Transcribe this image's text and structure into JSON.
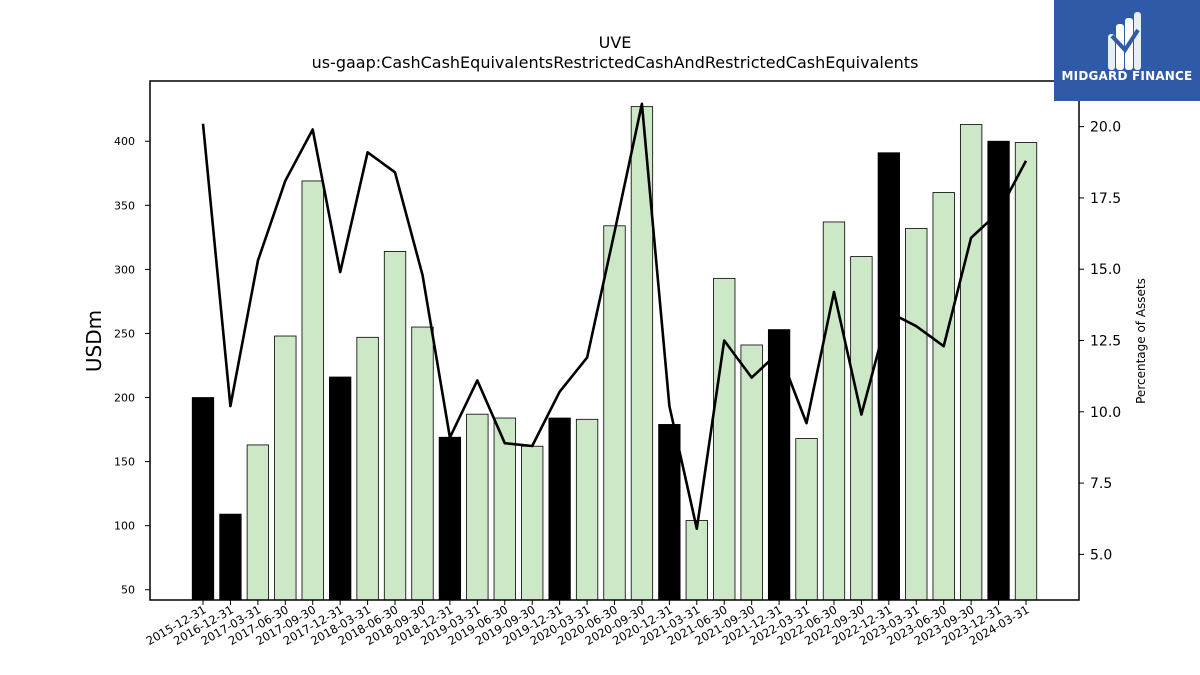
{
  "brand": {
    "name": "MIDGARD FINANCE",
    "color": "#2f5aa8"
  },
  "chart_data": {
    "type": "bar",
    "title": "UVE",
    "subtitle": "us-gaap:CashCashEquivalentsRestrictedCashAndRestrictedCashEquivalents",
    "ylabel": "USDm",
    "y2label": "Percentage of Assets",
    "ylim": [
      42,
      447
    ],
    "y2lim": [
      3.4,
      21.6
    ],
    "yticks": [
      50,
      100,
      150,
      200,
      250,
      300,
      350,
      400
    ],
    "y2ticks": [
      "5.0",
      "7.5",
      "10.0",
      "12.5",
      "15.0",
      "17.5",
      "20.0"
    ],
    "categories": [
      "2015-12-31",
      "2016-12-31",
      "2017-03-31",
      "2017-06-30",
      "2017-09-30",
      "2017-12-31",
      "2018-03-31",
      "2018-06-30",
      "2018-09-30",
      "2018-12-31",
      "2019-03-31",
      "2019-06-30",
      "2019-09-30",
      "2019-12-31",
      "2020-03-31",
      "2020-06-30",
      "2020-09-30",
      "2020-12-31",
      "2021-03-31",
      "2021-06-30",
      "2021-09-30",
      "2021-12-31",
      "2022-03-31",
      "2022-06-30",
      "2022-09-30",
      "2022-12-31",
      "2023-03-31",
      "2023-06-30",
      "2023-09-30",
      "2023-12-31",
      "2024-03-31"
    ],
    "series": [
      {
        "type": "bar",
        "values": [
          200,
          109,
          163,
          248,
          369,
          216,
          247,
          314,
          255,
          169,
          187,
          184,
          162,
          184,
          183,
          334,
          427,
          179,
          104,
          293,
          241,
          253,
          168,
          337,
          310,
          391,
          332,
          360,
          413,
          400,
          399
        ],
        "annual_flags": [
          true,
          true,
          false,
          false,
          false,
          true,
          false,
          false,
          false,
          true,
          false,
          false,
          false,
          true,
          false,
          false,
          false,
          true,
          false,
          false,
          false,
          true,
          false,
          false,
          false,
          true,
          false,
          false,
          false,
          true,
          false
        ]
      },
      {
        "type": "line",
        "axis": "right",
        "values": [
          20.1,
          10.2,
          15.3,
          18.1,
          19.9,
          14.9,
          19.1,
          18.4,
          14.8,
          9.1,
          11.1,
          8.9,
          8.8,
          10.7,
          11.9,
          16.3,
          20.8,
          10.2,
          5.9,
          12.5,
          11.2,
          12.1,
          9.6,
          14.2,
          9.9,
          13.5,
          13.0,
          12.3,
          16.1,
          17.0,
          18.8
        ]
      }
    ],
    "colors": {
      "annual_bar": "#000000",
      "quarter_bar": "#cce8c6",
      "line": "#000000"
    },
    "grid": false
  }
}
